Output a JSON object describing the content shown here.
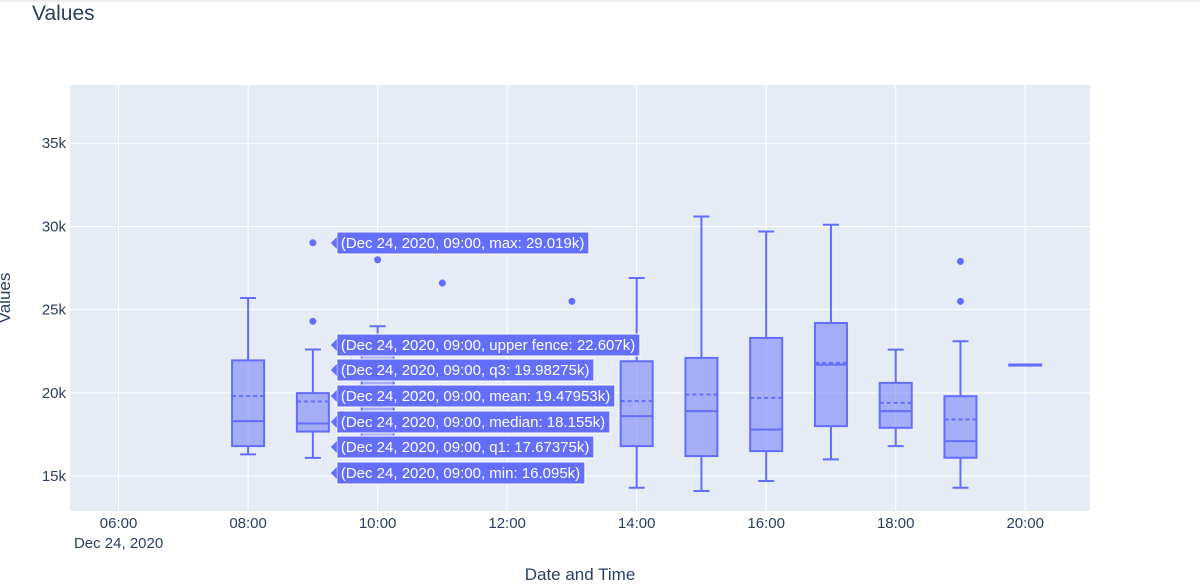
{
  "chart_data": {
    "type": "box",
    "title": "Values",
    "xlabel": "Date and Time",
    "ylabel": "Values",
    "x_range": [
      "2020-12-24 05:15",
      "2020-12-24 21:00"
    ],
    "y_range": [
      12900,
      38500
    ],
    "x_ticks": [
      {
        "t": "2020-12-24 06:00",
        "label": "06:00",
        "sublabel": "Dec 24, 2020"
      },
      {
        "t": "2020-12-24 08:00",
        "label": "08:00"
      },
      {
        "t": "2020-12-24 10:00",
        "label": "10:00"
      },
      {
        "t": "2020-12-24 12:00",
        "label": "12:00"
      },
      {
        "t": "2020-12-24 14:00",
        "label": "14:00"
      },
      {
        "t": "2020-12-24 16:00",
        "label": "16:00"
      },
      {
        "t": "2020-12-24 18:00",
        "label": "18:00"
      },
      {
        "t": "2020-12-24 20:00",
        "label": "20:00"
      }
    ],
    "y_ticks": [
      {
        "v": 15000,
        "label": "15k"
      },
      {
        "v": 20000,
        "label": "20k"
      },
      {
        "v": 25000,
        "label": "25k"
      },
      {
        "v": 30000,
        "label": "30k"
      },
      {
        "v": 35000,
        "label": "35k"
      }
    ],
    "grid": true,
    "color": "#636efa",
    "plot_bg": "#e5ecf6",
    "boxes": [
      {
        "t": "2020-12-24 08:00",
        "min": 16300,
        "q1": 16800,
        "median": 18300,
        "mean": 19800,
        "q3": 21950,
        "max": 25700,
        "outliers": []
      },
      {
        "t": "2020-12-24 09:00",
        "min": 16095,
        "q1": 17673.75,
        "median": 18155,
        "mean": 19479.53,
        "q3": 19982.75,
        "max": 22607,
        "outliers": [
          29019,
          24300
        ]
      },
      {
        "t": "2020-12-24 10:00",
        "min": 16500,
        "q1": 17300,
        "median": 19300,
        "mean": 20300,
        "q3": 22700,
        "max": 24000,
        "outliers": [
          28000
        ]
      },
      {
        "t": "2020-12-24 11:00",
        "min": null,
        "q1": null,
        "median": null,
        "mean": null,
        "q3": null,
        "max": null,
        "outliers": [
          26600
        ]
      },
      {
        "t": "2020-12-24 13:00",
        "min": null,
        "q1": null,
        "median": null,
        "mean": null,
        "q3": null,
        "max": null,
        "outliers": [
          25500
        ]
      },
      {
        "t": "2020-12-24 14:00",
        "min": 14300,
        "q1": 16800,
        "median": 18600,
        "mean": 19500,
        "q3": 21900,
        "max": 26900,
        "outliers": []
      },
      {
        "t": "2020-12-24 15:00",
        "min": 14100,
        "q1": 16200,
        "median": 18900,
        "mean": 19900,
        "q3": 22100,
        "max": 30600,
        "outliers": []
      },
      {
        "t": "2020-12-24 16:00",
        "min": 14700,
        "q1": 16500,
        "median": 17800,
        "mean": 19700,
        "q3": 23300,
        "max": 29700,
        "outliers": []
      },
      {
        "t": "2020-12-24 17:00",
        "min": 16000,
        "q1": 18000,
        "median": 21700,
        "mean": 21800,
        "q3": 24200,
        "max": 30100,
        "outliers": []
      },
      {
        "t": "2020-12-24 18:00",
        "min": 16800,
        "q1": 17900,
        "median": 18900,
        "mean": 19400,
        "q3": 20600,
        "max": 22600,
        "outliers": []
      },
      {
        "t": "2020-12-24 19:00",
        "min": 14300,
        "q1": 16100,
        "median": 17100,
        "mean": 18400,
        "q3": 19800,
        "max": 23100,
        "outliers": [
          27900,
          25500
        ]
      },
      {
        "t": "2020-12-24 20:00",
        "min": 21700,
        "q1": 21700,
        "median": 21700,
        "mean": 21700,
        "q3": 21700,
        "max": 21700,
        "outliers": []
      }
    ],
    "hover_labels": [
      {
        "value": 29019,
        "text": "(Dec 24, 2020, 09:00, max: 29.019k)"
      },
      {
        "value": 22607,
        "text": "(Dec 24, 2020, 09:00, upper fence: 22.607k)"
      },
      {
        "value": 19982.75,
        "text": "(Dec 24, 2020, 09:00, q3: 19.98275k)"
      },
      {
        "value": 19479.53,
        "text": "(Dec 24, 2020, 09:00, mean: 19.47953k)"
      },
      {
        "value": 18155,
        "text": "(Dec 24, 2020, 09:00, median: 18.155k)"
      },
      {
        "value": 17673.75,
        "text": "(Dec 24, 2020, 09:00, q1: 17.67375k)"
      },
      {
        "value": 16095,
        "text": "(Dec 24, 2020, 09:00, min: 16.095k)"
      }
    ]
  }
}
